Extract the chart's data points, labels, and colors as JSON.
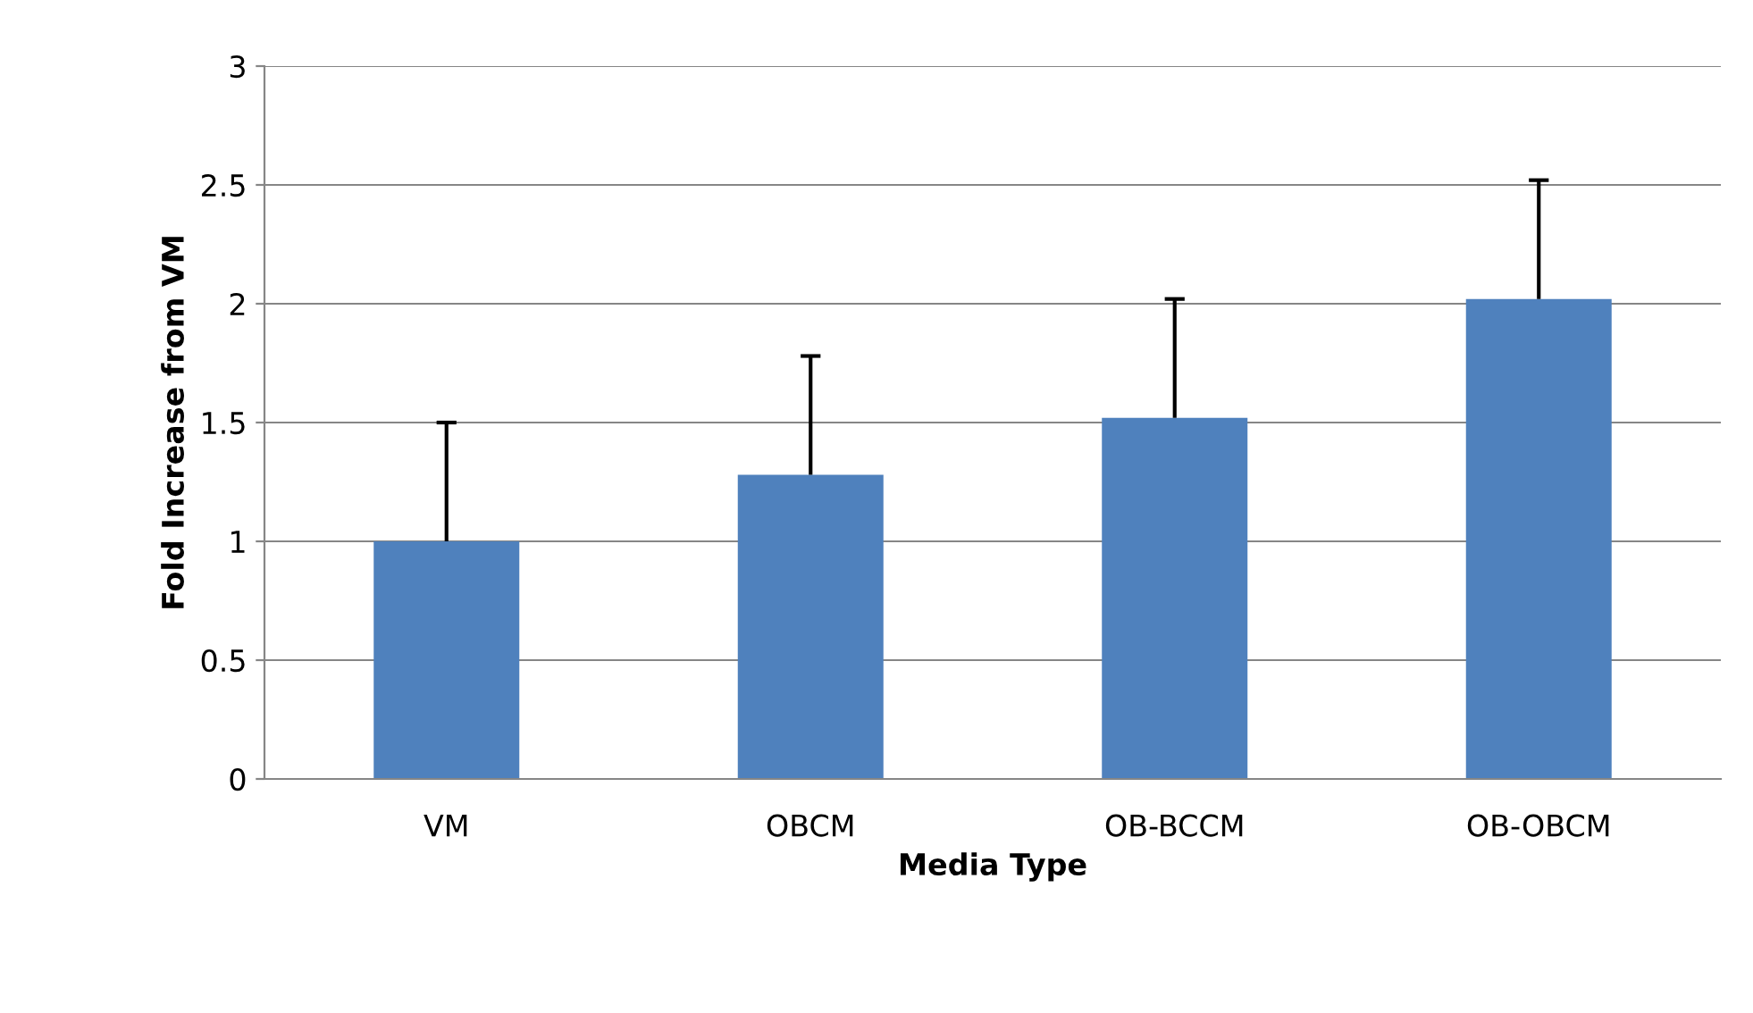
{
  "chart_data": {
    "type": "bar",
    "xlabel": "Media Type",
    "ylabel": "Fold Increase from VM",
    "categories": [
      "VM",
      "OBCM",
      "OB-BCCM",
      "OB-OBCM"
    ],
    "values": [
      1.0,
      1.28,
      1.52,
      2.02
    ],
    "errors": [
      [
        1.0,
        1.5
      ],
      [
        1.28,
        1.78
      ],
      [
        1.52,
        2.02
      ],
      [
        2.02,
        2.52
      ]
    ],
    "color": "#4f81bd",
    "ylim": [
      0,
      3
    ],
    "yticks": [
      0,
      0.5,
      1,
      1.5,
      2,
      2.5,
      3
    ],
    "grid": "y"
  }
}
